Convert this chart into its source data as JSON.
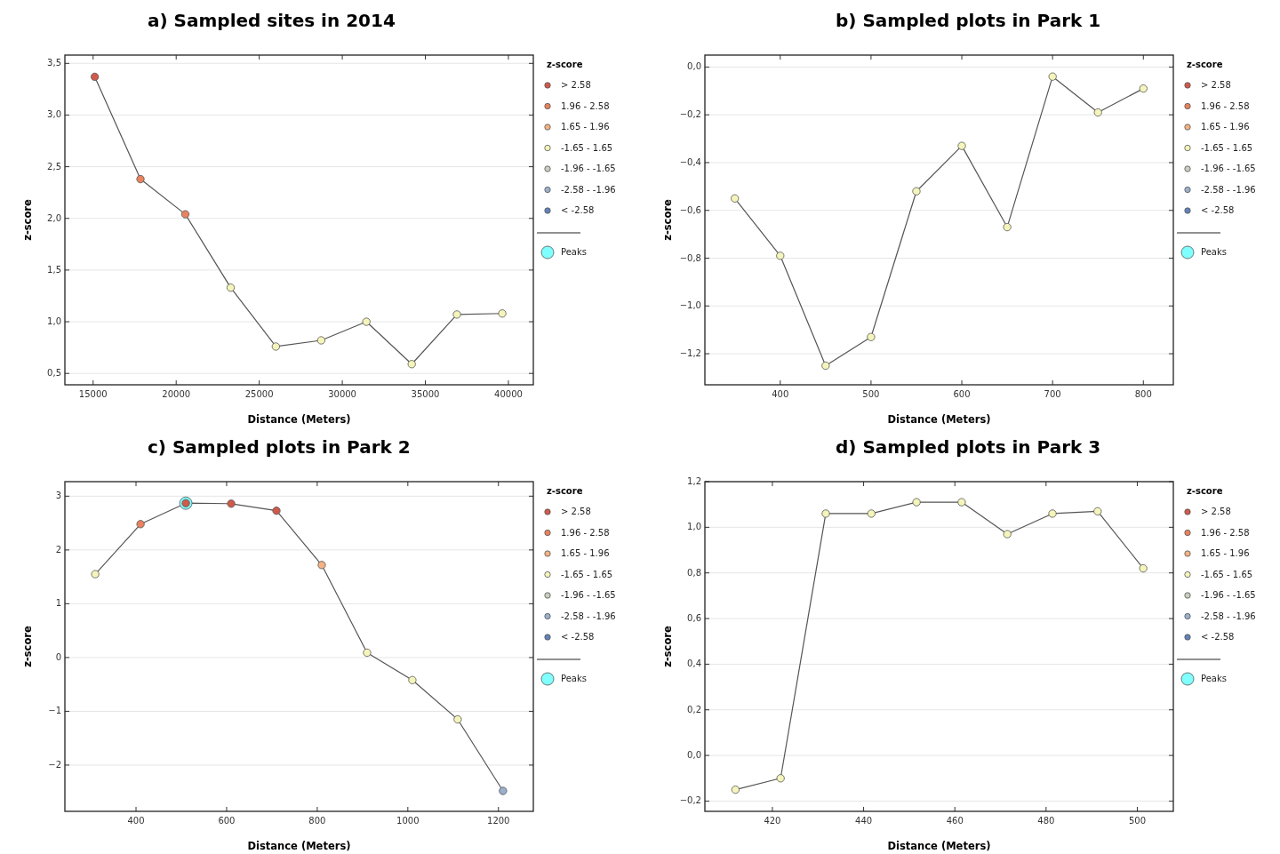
{
  "chart_data": [
    {
      "type": "line",
      "title": "a) Sampled sites in 2014",
      "xlabel": "Distance (Meters)",
      "ylabel": "z-score",
      "legend_title": "z-score",
      "legend": "right",
      "grid": "y",
      "marker": "circle",
      "x": [
        15100,
        17850,
        20550,
        23280,
        26000,
        28730,
        31450,
        34180,
        36900,
        39630
      ],
      "xlim": [
        13300,
        41500
      ],
      "xticks": [
        15000,
        20000,
        25000,
        30000,
        35000,
        40000
      ],
      "ylim": [
        0.39,
        3.58
      ],
      "yticks": [
        {
          "value": 0.5,
          "label": "0,5"
        },
        {
          "value": 1,
          "label": "1,0"
        },
        {
          "value": 1.5,
          "label": "1,5"
        },
        {
          "value": 2,
          "label": "2,0"
        },
        {
          "value": 2.5,
          "label": "2,5"
        },
        {
          "value": 3,
          "label": "3,0"
        },
        {
          "value": 3.5,
          "label": "3,5"
        }
      ],
      "series": [
        {
          "type": "line",
          "marker": "none",
          "color": "#555555",
          "values": [
            3.37,
            2.38,
            2.04,
            1.33,
            0.76,
            0.82,
            1.0,
            0.59,
            1.07,
            1.08
          ]
        },
        {
          "type": "scatter",
          "name": "> 2.58",
          "color": "#d05a4a",
          "values": [
            3.37,
            null,
            null,
            null,
            null,
            null,
            null,
            null,
            null,
            null
          ]
        },
        {
          "type": "scatter",
          "name": "1.96 - 2.58",
          "color": "#e8825f",
          "values": [
            null,
            2.38,
            2.04,
            null,
            null,
            null,
            null,
            null,
            null,
            null
          ]
        },
        {
          "type": "scatter",
          "name": "1.65 - 1.96",
          "color": "#f3b283",
          "values": [
            null,
            null,
            null,
            null,
            null,
            null,
            null,
            null,
            null,
            null
          ]
        },
        {
          "type": "scatter",
          "name": "-1.65 - 1.65",
          "color": "#f5f5bb",
          "values": [
            null,
            null,
            null,
            1.33,
            0.76,
            0.82,
            1.0,
            0.59,
            1.07,
            1.08
          ]
        },
        {
          "type": "scatter",
          "name": "-1.96 - -1.65",
          "color": "#c8cfc0",
          "values": [
            null,
            null,
            null,
            null,
            null,
            null,
            null,
            null,
            null,
            null
          ]
        },
        {
          "type": "scatter",
          "name": "-2.58 - -1.96",
          "color": "#9ab0cc",
          "values": [
            null,
            null,
            null,
            null,
            null,
            null,
            null,
            null,
            null,
            null
          ]
        },
        {
          "type": "scatter",
          "name": "< -2.58",
          "color": "#6283b8",
          "values": [
            null,
            null,
            null,
            null,
            null,
            null,
            null,
            null,
            null,
            null
          ]
        },
        {
          "type": "scatter",
          "name": "Peaks",
          "color": "#80ffff",
          "values": [
            null,
            null,
            null,
            null,
            null,
            null,
            null,
            null,
            null,
            null
          ]
        }
      ]
    },
    {
      "type": "line",
      "title": "b) Sampled plots in Park 1",
      "xlabel": "Distance (Meters)",
      "ylabel": "z-score",
      "legend_title": "z-score",
      "legend": "right",
      "grid": "y",
      "marker": "circle",
      "x": [
        350,
        400,
        450,
        500,
        550,
        600,
        650,
        700,
        750,
        800
      ],
      "xlim": [
        317,
        833
      ],
      "xticks": [
        400,
        500,
        600,
        700,
        800
      ],
      "ylim": [
        -1.33,
        0.05
      ],
      "yticks": [
        {
          "value": -1.2,
          "label": "−1,2"
        },
        {
          "value": -1,
          "label": "−1,0"
        },
        {
          "value": -0.8,
          "label": "−0,8"
        },
        {
          "value": -0.6,
          "label": "−0,6"
        },
        {
          "value": -0.4,
          "label": "−0,4"
        },
        {
          "value": -0.2,
          "label": "−0,2"
        },
        {
          "value": 0,
          "label": "0,0"
        }
      ],
      "series": [
        {
          "type": "line",
          "marker": "none",
          "color": "#555555",
          "values": [
            -0.55,
            -0.79,
            -1.25,
            -1.13,
            -0.52,
            -0.33,
            -0.67,
            -0.04,
            -0.19,
            -0.09
          ]
        },
        {
          "type": "scatter",
          "name": "> 2.58",
          "color": "#d05a4a",
          "values": [
            null,
            null,
            null,
            null,
            null,
            null,
            null,
            null,
            null,
            null
          ]
        },
        {
          "type": "scatter",
          "name": "1.96 - 2.58",
          "color": "#e8825f",
          "values": [
            null,
            null,
            null,
            null,
            null,
            null,
            null,
            null,
            null,
            null
          ]
        },
        {
          "type": "scatter",
          "name": "1.65 - 1.96",
          "color": "#f3b283",
          "values": [
            null,
            null,
            null,
            null,
            null,
            null,
            null,
            null,
            null,
            null
          ]
        },
        {
          "type": "scatter",
          "name": "-1.65 - 1.65",
          "color": "#f5f5bb",
          "values": [
            -0.55,
            -0.79,
            -1.25,
            -1.13,
            -0.52,
            -0.33,
            -0.67,
            -0.04,
            -0.19,
            -0.09
          ]
        },
        {
          "type": "scatter",
          "name": "-1.96 - -1.65",
          "color": "#c8cfc0",
          "values": [
            null,
            null,
            null,
            null,
            null,
            null,
            null,
            null,
            null,
            null
          ]
        },
        {
          "type": "scatter",
          "name": "-2.58 - -1.96",
          "color": "#9ab0cc",
          "values": [
            null,
            null,
            null,
            null,
            null,
            null,
            null,
            null,
            null,
            null
          ]
        },
        {
          "type": "scatter",
          "name": "< -2.58",
          "color": "#6283b8",
          "values": [
            null,
            null,
            null,
            null,
            null,
            null,
            null,
            null,
            null,
            null
          ]
        },
        {
          "type": "scatter",
          "name": "Peaks",
          "color": "#80ffff",
          "values": [
            null,
            null,
            null,
            null,
            null,
            null,
            null,
            null,
            null,
            null
          ]
        }
      ]
    },
    {
      "type": "line",
      "title": "c) Sampled plots in Park 2",
      "xlabel": "Distance (Meters)",
      "ylabel": "z-score",
      "legend_title": "z-score",
      "legend": "right",
      "grid": "y",
      "marker": "circle",
      "x": [
        310,
        410,
        510,
        610,
        710,
        810,
        910,
        1010,
        1110,
        1210
      ],
      "xlim": [
        243,
        1277
      ],
      "xticks": [
        400,
        600,
        800,
        1000,
        1200
      ],
      "ylim": [
        -2.86,
        3.27
      ],
      "yticks": [
        {
          "value": -2,
          "label": "−2"
        },
        {
          "value": -1,
          "label": "−1"
        },
        0,
        1,
        2,
        3
      ],
      "series": [
        {
          "type": "line",
          "marker": "none",
          "color": "#555555",
          "values": [
            1.55,
            2.48,
            2.87,
            2.86,
            2.73,
            1.72,
            0.09,
            -0.42,
            -1.15,
            -2.48
          ]
        },
        {
          "type": "scatter",
          "name": "> 2.58",
          "color": "#d05a4a",
          "values": [
            null,
            null,
            2.87,
            2.86,
            2.73,
            null,
            null,
            null,
            null,
            null
          ]
        },
        {
          "type": "scatter",
          "name": "1.96 - 2.58",
          "color": "#e8825f",
          "values": [
            null,
            2.48,
            null,
            null,
            null,
            null,
            null,
            null,
            null,
            null
          ]
        },
        {
          "type": "scatter",
          "name": "1.65 - 1.96",
          "color": "#f3b283",
          "values": [
            null,
            null,
            null,
            null,
            null,
            1.72,
            null,
            null,
            null,
            null
          ]
        },
        {
          "type": "scatter",
          "name": "-1.65 - 1.65",
          "color": "#f5f5bb",
          "values": [
            1.55,
            null,
            null,
            null,
            null,
            null,
            0.09,
            -0.42,
            -1.15,
            null
          ]
        },
        {
          "type": "scatter",
          "name": "-1.96 - -1.65",
          "color": "#c8cfc0",
          "values": [
            null,
            null,
            null,
            null,
            null,
            null,
            null,
            null,
            null,
            null
          ]
        },
        {
          "type": "scatter",
          "name": "-2.58 - -1.96",
          "color": "#9ab0cc",
          "values": [
            null,
            null,
            null,
            null,
            null,
            null,
            null,
            null,
            null,
            -2.48
          ]
        },
        {
          "type": "scatter",
          "name": "< -2.58",
          "color": "#6283b8",
          "values": [
            null,
            null,
            null,
            null,
            null,
            null,
            null,
            null,
            null,
            null
          ]
        },
        {
          "type": "scatter",
          "name": "Peaks",
          "color": "#80ffff",
          "values": [
            null,
            null,
            2.87,
            null,
            null,
            null,
            null,
            null,
            null,
            null
          ]
        }
      ]
    },
    {
      "type": "line",
      "title": "d) Sampled plots in Park 3",
      "xlabel": "Distance (Meters)",
      "ylabel": "z-score",
      "legend_title": "z-score",
      "legend": "right",
      "grid": "y",
      "marker": "circle",
      "x": [
        411.9,
        421.8,
        431.7,
        441.7,
        451.6,
        461.5,
        471.5,
        481.4,
        491.3,
        501.3
      ],
      "xlim": [
        405.2,
        507.9
      ],
      "xticks": [
        420,
        440,
        460,
        480,
        500
      ],
      "ylim": [
        -0.245,
        1.2
      ],
      "yticks": [
        {
          "value": -0.2,
          "label": "−0,2"
        },
        {
          "value": 0,
          "label": "0,0"
        },
        {
          "value": 0.2,
          "label": "0,2"
        },
        {
          "value": 0.4,
          "label": "0,4"
        },
        {
          "value": 0.6,
          "label": "0,6"
        },
        {
          "value": 0.8,
          "label": "0,8"
        },
        {
          "value": 1,
          "label": "1,0"
        },
        {
          "value": 1.2,
          "label": "1,2"
        }
      ],
      "series": [
        {
          "type": "line",
          "marker": "none",
          "color": "#555555",
          "values": [
            -0.15,
            -0.1,
            1.06,
            1.06,
            1.11,
            1.11,
            0.97,
            1.06,
            1.07,
            0.82
          ]
        },
        {
          "type": "scatter",
          "name": "> 2.58",
          "color": "#d05a4a",
          "values": [
            null,
            null,
            null,
            null,
            null,
            null,
            null,
            null,
            null,
            null
          ]
        },
        {
          "type": "scatter",
          "name": "1.96 - 2.58",
          "color": "#e8825f",
          "values": [
            null,
            null,
            null,
            null,
            null,
            null,
            null,
            null,
            null,
            null
          ]
        },
        {
          "type": "scatter",
          "name": "1.65 - 1.96",
          "color": "#f3b283",
          "values": [
            null,
            null,
            null,
            null,
            null,
            null,
            null,
            null,
            null,
            null
          ]
        },
        {
          "type": "scatter",
          "name": "-1.65 - 1.65",
          "color": "#f5f5bb",
          "values": [
            -0.15,
            -0.1,
            1.06,
            1.06,
            1.11,
            1.11,
            0.97,
            1.06,
            1.07,
            0.82
          ]
        },
        {
          "type": "scatter",
          "name": "-1.96 - -1.65",
          "color": "#c8cfc0",
          "values": [
            null,
            null,
            null,
            null,
            null,
            null,
            null,
            null,
            null,
            null
          ]
        },
        {
          "type": "scatter",
          "name": "-2.58 - -1.96",
          "color": "#9ab0cc",
          "values": [
            null,
            null,
            null,
            null,
            null,
            null,
            null,
            null,
            null,
            null
          ]
        },
        {
          "type": "scatter",
          "name": "< -2.58",
          "color": "#6283b8",
          "values": [
            null,
            null,
            null,
            null,
            null,
            null,
            null,
            null,
            null,
            null
          ]
        },
        {
          "type": "scatter",
          "name": "Peaks",
          "color": "#80ffff",
          "values": [
            null,
            null,
            null,
            null,
            null,
            null,
            null,
            null,
            null,
            null
          ]
        }
      ]
    }
  ]
}
